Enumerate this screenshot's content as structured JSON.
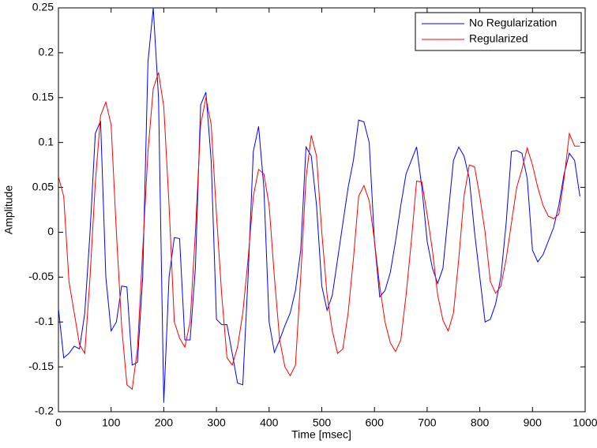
{
  "chart_data": {
    "type": "line",
    "xlabel": "Time [msec]",
    "ylabel": "Amplitude",
    "x": [
      0,
      10,
      20,
      30,
      40,
      50,
      60,
      70,
      80,
      90,
      100,
      110,
      120,
      130,
      140,
      150,
      160,
      170,
      180,
      190,
      200,
      210,
      220,
      230,
      240,
      250,
      260,
      270,
      280,
      290,
      300,
      310,
      320,
      330,
      340,
      350,
      360,
      370,
      380,
      390,
      400,
      410,
      420,
      430,
      440,
      450,
      460,
      470,
      480,
      490,
      500,
      510,
      520,
      530,
      540,
      550,
      560,
      570,
      580,
      590,
      600,
      610,
      620,
      630,
      640,
      650,
      660,
      670,
      680,
      690,
      700,
      710,
      720,
      730,
      740,
      750,
      760,
      770,
      780,
      790,
      800,
      810,
      820,
      830,
      840,
      850,
      860,
      870,
      880,
      890,
      900,
      910,
      920,
      930,
      940,
      950,
      960,
      970,
      980,
      990
    ],
    "series": [
      {
        "name": "No Regularization",
        "color": "#0000ff",
        "values": [
          -0.085,
          -0.14,
          -0.135,
          -0.127,
          -0.13,
          -0.09,
          0.0,
          0.11,
          0.124,
          -0.05,
          -0.11,
          -0.1,
          -0.06,
          -0.061,
          -0.148,
          -0.145,
          -0.05,
          0.19,
          0.25,
          0.15,
          -0.19,
          -0.05,
          -0.006,
          -0.007,
          -0.12,
          -0.12,
          -0.04,
          0.142,
          0.156,
          0.08,
          -0.097,
          -0.103,
          -0.103,
          -0.135,
          -0.168,
          -0.17,
          -0.05,
          0.09,
          0.118,
          0.05,
          -0.1,
          -0.134,
          -0.12,
          -0.104,
          -0.09,
          -0.065,
          -0.02,
          0.095,
          0.085,
          0.03,
          -0.06,
          -0.087,
          -0.07,
          -0.03,
          0.01,
          0.05,
          0.08,
          0.125,
          0.123,
          0.1,
          -0.01,
          -0.072,
          -0.065,
          -0.045,
          -0.01,
          0.03,
          0.065,
          0.08,
          0.095,
          0.05,
          -0.01,
          -0.04,
          -0.057,
          -0.04,
          0.02,
          0.08,
          0.095,
          0.085,
          0.06,
          0.0,
          -0.05,
          -0.1,
          -0.097,
          -0.08,
          -0.05,
          0.01,
          0.09,
          0.091,
          0.088,
          0.06,
          -0.02,
          -0.033,
          -0.025,
          -0.01,
          0.005,
          0.03,
          0.065,
          0.088,
          0.08,
          0.04
        ]
      },
      {
        "name": "Regularized",
        "color": "#ff0000",
        "values": [
          0.062,
          0.04,
          -0.055,
          -0.09,
          -0.125,
          -0.135,
          -0.05,
          0.055,
          0.13,
          0.145,
          0.12,
          0.0,
          -0.105,
          -0.17,
          -0.175,
          -0.13,
          -0.02,
          0.09,
          0.16,
          0.178,
          0.14,
          0.03,
          -0.1,
          -0.118,
          -0.128,
          -0.1,
          0.0,
          0.12,
          0.15,
          0.12,
          0.02,
          -0.07,
          -0.14,
          -0.148,
          -0.128,
          -0.09,
          -0.03,
          0.04,
          0.07,
          0.065,
          0.03,
          -0.05,
          -0.12,
          -0.15,
          -0.16,
          -0.148,
          -0.05,
          0.06,
          0.108,
          0.085,
          0.0,
          -0.07,
          -0.11,
          -0.135,
          -0.13,
          -0.09,
          -0.03,
          0.04,
          0.052,
          0.035,
          -0.01,
          -0.06,
          -0.1,
          -0.123,
          -0.133,
          -0.12,
          -0.07,
          -0.01,
          0.057,
          0.056,
          0.02,
          -0.02,
          -0.07,
          -0.098,
          -0.11,
          -0.09,
          -0.03,
          0.04,
          0.075,
          0.073,
          0.04,
          0.0,
          -0.055,
          -0.068,
          -0.06,
          -0.03,
          0.01,
          0.05,
          0.07,
          0.094,
          0.075,
          0.05,
          0.03,
          0.018,
          0.015,
          0.02,
          0.06,
          0.11,
          0.096,
          0.096
        ]
      }
    ],
    "xlim": [
      0,
      1000
    ],
    "xticks": [
      0,
      100,
      200,
      300,
      400,
      500,
      600,
      700,
      800,
      900,
      1000
    ],
    "ylim": [
      -0.2,
      0.25
    ],
    "yticks": [
      -0.2,
      -0.15,
      -0.1,
      -0.05,
      0,
      0.05,
      0.1,
      0.15,
      0.2,
      0.25
    ],
    "legend": "northeast"
  }
}
